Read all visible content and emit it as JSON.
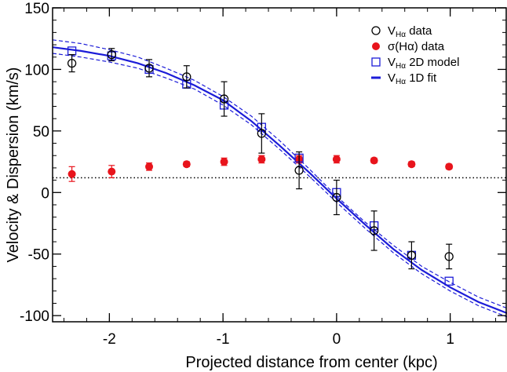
{
  "chart_data": {
    "type": "scatter",
    "xlabel": "Projected distance from center (kpc)",
    "ylabel": "Velocity & Dispersion (km/s)",
    "xlim": [
      -2.5,
      1.5
    ],
    "ylim": [
      -105,
      150
    ],
    "x_ticks": [
      -2,
      -1,
      0,
      1
    ],
    "x_tick_labels": [
      "-2",
      "-1",
      "0",
      "1"
    ],
    "y_ticks": [
      -100,
      -50,
      0,
      50,
      100,
      150
    ],
    "y_tick_labels": [
      "-100",
      "-50",
      "0",
      "50",
      "100",
      "150"
    ],
    "grid": false,
    "legend_position": "top-right",
    "reference_line_y": 12,
    "series": [
      {
        "name": "V_Hα data",
        "marker": "open-circle",
        "color": "#000000",
        "x": [
          -2.33,
          -1.98,
          -1.65,
          -1.32,
          -0.99,
          -0.66,
          -0.33,
          0.0,
          0.33,
          0.66,
          0.99
        ],
        "y": [
          105,
          112,
          101,
          94,
          76,
          48,
          18,
          -4,
          -31,
          -51,
          -52
        ],
        "err": [
          7,
          5,
          7,
          9,
          14,
          16,
          15,
          14,
          16,
          11,
          10
        ]
      },
      {
        "name": "σ(Hα) data",
        "marker": "filled-circle",
        "color": "#e8141c",
        "x": [
          -2.33,
          -1.98,
          -1.65,
          -1.32,
          -0.99,
          -0.66,
          -0.33,
          0.0,
          0.33,
          0.66,
          0.99
        ],
        "y": [
          15,
          17,
          21,
          23,
          25,
          27,
          27,
          27,
          26,
          23,
          21
        ],
        "err": [
          6,
          5,
          3,
          2,
          3,
          3,
          3,
          3,
          2,
          2,
          2
        ]
      },
      {
        "name": "V_Hα 2D model",
        "marker": "open-square",
        "color": "#1c1cd8",
        "x": [
          -2.33,
          -1.98,
          -1.65,
          -1.32,
          -0.99,
          -0.66,
          -0.33,
          0.0,
          0.33,
          0.66,
          0.99
        ],
        "y": [
          115,
          111,
          100,
          88,
          71,
          53,
          28,
          0,
          -27,
          -51,
          -72
        ]
      },
      {
        "name": "V_Hα 1D fit",
        "marker": "line",
        "color": "#1c1cd8",
        "x": [
          -2.5,
          -2.25,
          -2.0,
          -1.75,
          -1.5,
          -1.25,
          -1.0,
          -0.75,
          -0.5,
          -0.25,
          0.0,
          0.25,
          0.5,
          0.75,
          1.0,
          1.25,
          1.5
        ],
        "y": [
          118,
          115,
          111,
          105,
          97,
          87,
          75,
          58,
          38,
          17,
          -5,
          -26,
          -46,
          -63,
          -77,
          -89,
          -98
        ],
        "upper": [
          124,
          121,
          116,
          110,
          101,
          91,
          78,
          62,
          42,
          20,
          -3,
          -24,
          -43,
          -60,
          -73,
          -85,
          -94
        ],
        "lower": [
          113,
          110,
          106,
          101,
          93,
          84,
          71,
          55,
          35,
          14,
          -8,
          -29,
          -49,
          -66,
          -80,
          -92,
          -101
        ]
      }
    ]
  },
  "legend": {
    "items": [
      {
        "prefix": "V",
        "sub": "Hα",
        "suffix": " data"
      },
      {
        "prefix": "σ(Hα) data",
        "sub": "",
        "suffix": ""
      },
      {
        "prefix": "V",
        "sub": "Hα",
        "suffix": " 2D model"
      },
      {
        "prefix": "V",
        "sub": "Hα",
        "suffix": " 1D fit"
      }
    ]
  }
}
